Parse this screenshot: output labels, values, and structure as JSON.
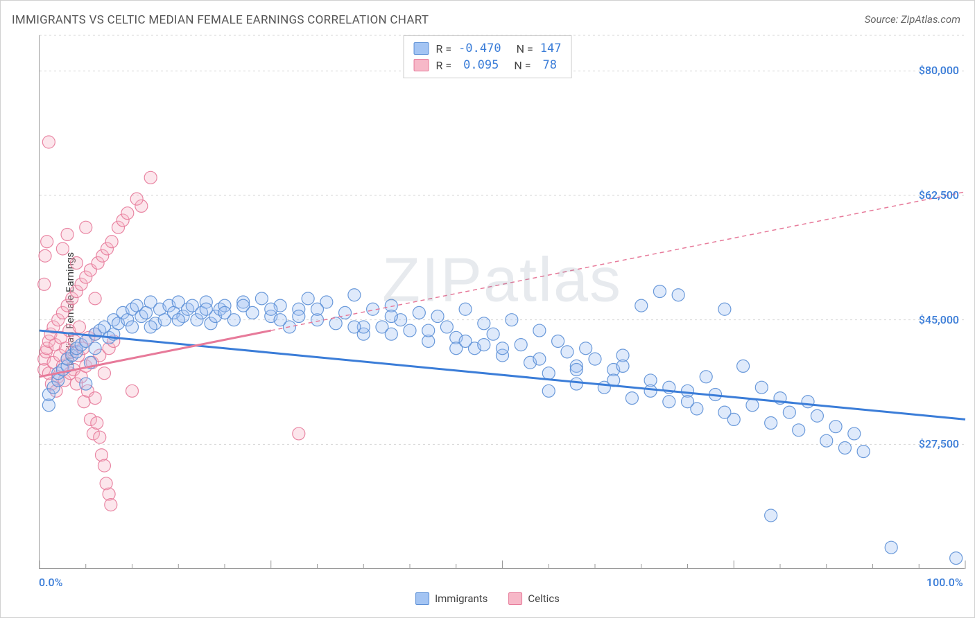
{
  "title": "IMMIGRANTS VS CELTIC MEDIAN FEMALE EARNINGS CORRELATION CHART",
  "source": "Source: ZipAtlas.com",
  "watermark": "ZIPatlas",
  "ylabel": "Median Female Earnings",
  "chart": {
    "type": "scatter",
    "background_color": "#ffffff",
    "grid_color": "#d5d5d5",
    "axis_color": "#999999",
    "xlim": [
      0,
      100
    ],
    "ylim": [
      10000,
      85000
    ],
    "ytick_values": [
      27500,
      45000,
      62500,
      80000
    ],
    "ytick_labels": [
      "$27,500",
      "$45,000",
      "$62,500",
      "$80,000"
    ],
    "xtick_minor_step": 5,
    "xtick_labels": {
      "0": "0.0%",
      "100": "100.0%"
    },
    "tick_label_color": "#3b7dd8",
    "tick_label_fontsize": 16,
    "marker_radius": 9,
    "marker_fill_opacity": 0.35,
    "marker_stroke_opacity": 0.9,
    "marker_stroke_width": 1.2,
    "trend_line_width_solid": 3,
    "trend_line_width_dashed": 1.5,
    "dash_pattern": "6,5"
  },
  "series": [
    {
      "name": "Immigrants",
      "color_fill": "#a3c4f3",
      "color_stroke": "#5b8fd6",
      "trend_color": "#3b7dd8",
      "trend_style": "solid",
      "trend_y_at_x0": 43500,
      "trend_y_at_x100": 31000,
      "R": "-0.470",
      "N": "147",
      "points": [
        [
          1,
          33000
        ],
        [
          1,
          34500
        ],
        [
          1.5,
          35500
        ],
        [
          2,
          36500
        ],
        [
          2,
          37500
        ],
        [
          2.5,
          38000
        ],
        [
          3,
          38500
        ],
        [
          3,
          39500
        ],
        [
          3.5,
          40000
        ],
        [
          4,
          40500
        ],
        [
          4,
          41000
        ],
        [
          4.5,
          41500
        ],
        [
          5,
          42000
        ],
        [
          5,
          36000
        ],
        [
          5.5,
          39000
        ],
        [
          6,
          43000
        ],
        [
          6,
          41000
        ],
        [
          6.5,
          43500
        ],
        [
          7,
          44000
        ],
        [
          7.5,
          42500
        ],
        [
          8,
          45000
        ],
        [
          8,
          43000
        ],
        [
          8.5,
          44500
        ],
        [
          9,
          46000
        ],
        [
          9.5,
          45000
        ],
        [
          10,
          46500
        ],
        [
          10,
          44000
        ],
        [
          10.5,
          47000
        ],
        [
          11,
          45500
        ],
        [
          11.5,
          46000
        ],
        [
          12,
          47500
        ],
        [
          12.5,
          44500
        ],
        [
          13,
          46500
        ],
        [
          13.5,
          45000
        ],
        [
          14,
          47000
        ],
        [
          14.5,
          46000
        ],
        [
          15,
          47500
        ],
        [
          15.5,
          45500
        ],
        [
          16,
          46500
        ],
        [
          16.5,
          47000
        ],
        [
          17,
          45000
        ],
        [
          17.5,
          46000
        ],
        [
          18,
          47500
        ],
        [
          18.5,
          44500
        ],
        [
          19,
          45500
        ],
        [
          19.5,
          46500
        ],
        [
          20,
          47000
        ],
        [
          21,
          45000
        ],
        [
          22,
          47500
        ],
        [
          23,
          46000
        ],
        [
          24,
          48000
        ],
        [
          25,
          45500
        ],
        [
          26,
          47000
        ],
        [
          27,
          44000
        ],
        [
          28,
          46500
        ],
        [
          29,
          48000
        ],
        [
          30,
          45000
        ],
        [
          31,
          47500
        ],
        [
          32,
          44500
        ],
        [
          33,
          46000
        ],
        [
          34,
          48500
        ],
        [
          35,
          43000
        ],
        [
          36,
          46500
        ],
        [
          37,
          44000
        ],
        [
          38,
          47000
        ],
        [
          39,
          45000
        ],
        [
          40,
          43500
        ],
        [
          41,
          46000
        ],
        [
          42,
          42000
        ],
        [
          43,
          45500
        ],
        [
          44,
          44000
        ],
        [
          45,
          42500
        ],
        [
          46,
          46500
        ],
        [
          47,
          41000
        ],
        [
          48,
          44500
        ],
        [
          49,
          43000
        ],
        [
          50,
          40000
        ],
        [
          51,
          45000
        ],
        [
          52,
          41500
        ],
        [
          53,
          39000
        ],
        [
          54,
          43500
        ],
        [
          55,
          37500
        ],
        [
          56,
          42000
        ],
        [
          57,
          40500
        ],
        [
          58,
          36000
        ],
        [
          59,
          41000
        ],
        [
          60,
          39500
        ],
        [
          61,
          35500
        ],
        [
          62,
          38000
        ],
        [
          63,
          40000
        ],
        [
          64,
          34000
        ],
        [
          65,
          47000
        ],
        [
          66,
          36500
        ],
        [
          67,
          49000
        ],
        [
          68,
          33500
        ],
        [
          69,
          48500
        ],
        [
          70,
          35000
        ],
        [
          71,
          32500
        ],
        [
          72,
          37000
        ],
        [
          73,
          34500
        ],
        [
          74,
          46500
        ],
        [
          75,
          31000
        ],
        [
          76,
          38500
        ],
        [
          77,
          33000
        ],
        [
          78,
          35500
        ],
        [
          79,
          30500
        ],
        [
          80,
          34000
        ],
        [
          81,
          32000
        ],
        [
          82,
          29500
        ],
        [
          83,
          33500
        ],
        [
          84,
          31500
        ],
        [
          85,
          28000
        ],
        [
          86,
          30000
        ],
        [
          87,
          27000
        ],
        [
          88,
          29000
        ],
        [
          89,
          26500
        ],
        [
          79,
          17500
        ],
        [
          92,
          13000
        ],
        [
          99,
          11500
        ],
        [
          63,
          38500
        ],
        [
          55,
          35000
        ],
        [
          45,
          41000
        ],
        [
          35,
          44000
        ],
        [
          25,
          46500
        ],
        [
          15,
          45000
        ],
        [
          12,
          44000
        ],
        [
          20,
          46000
        ],
        [
          28,
          45500
        ],
        [
          38,
          43000
        ],
        [
          48,
          41500
        ],
        [
          58,
          38500
        ],
        [
          68,
          35500
        ],
        [
          18,
          46500
        ],
        [
          22,
          47000
        ],
        [
          26,
          45000
        ],
        [
          30,
          46500
        ],
        [
          34,
          44000
        ],
        [
          38,
          45500
        ],
        [
          42,
          43500
        ],
        [
          46,
          42000
        ],
        [
          50,
          41000
        ],
        [
          54,
          39500
        ],
        [
          58,
          38000
        ],
        [
          62,
          36500
        ],
        [
          66,
          35000
        ],
        [
          70,
          33500
        ],
        [
          74,
          32000
        ]
      ]
    },
    {
      "name": "Celtics",
      "color_fill": "#f7b8c8",
      "color_stroke": "#e77a9a",
      "trend_color": "#e77a9a",
      "trend_style": "solid-then-dashed",
      "trend_solid_until_x": 25,
      "trend_y_at_x0": 37000,
      "trend_y_at_x100": 63000,
      "R": "0.095",
      "N": "78",
      "points": [
        [
          0.5,
          38000
        ],
        [
          0.5,
          39500
        ],
        [
          0.7,
          40500
        ],
        [
          0.8,
          41000
        ],
        [
          1,
          42000
        ],
        [
          1,
          37500
        ],
        [
          1.2,
          43000
        ],
        [
          1.3,
          36000
        ],
        [
          1.5,
          44000
        ],
        [
          1.5,
          39000
        ],
        [
          1.7,
          41500
        ],
        [
          1.8,
          35000
        ],
        [
          2,
          45000
        ],
        [
          2,
          37000
        ],
        [
          2.2,
          40000
        ],
        [
          2.3,
          42500
        ],
        [
          2.5,
          38500
        ],
        [
          2.5,
          46000
        ],
        [
          2.7,
          36500
        ],
        [
          2.8,
          41000
        ],
        [
          3,
          47000
        ],
        [
          3,
          39500
        ],
        [
          3.2,
          43500
        ],
        [
          3.3,
          37500
        ],
        [
          3.5,
          40500
        ],
        [
          3.5,
          48000
        ],
        [
          3.7,
          38000
        ],
        [
          3.8,
          42000
        ],
        [
          4,
          49000
        ],
        [
          4,
          36000
        ],
        [
          4.2,
          40000
        ],
        [
          4.3,
          44000
        ],
        [
          4.5,
          50000
        ],
        [
          4.5,
          37000
        ],
        [
          4.7,
          41000
        ],
        [
          4.8,
          33500
        ],
        [
          5,
          51000
        ],
        [
          5,
          38500
        ],
        [
          5.2,
          35000
        ],
        [
          5.3,
          42500
        ],
        [
          5.5,
          52000
        ],
        [
          5.5,
          31000
        ],
        [
          5.7,
          39000
        ],
        [
          5.8,
          29000
        ],
        [
          6,
          34000
        ],
        [
          6,
          43000
        ],
        [
          6.2,
          30500
        ],
        [
          6.3,
          53000
        ],
        [
          6.5,
          28500
        ],
        [
          6.5,
          40000
        ],
        [
          6.7,
          26000
        ],
        [
          6.8,
          54000
        ],
        [
          7,
          24500
        ],
        [
          7,
          37500
        ],
        [
          7.2,
          22000
        ],
        [
          7.3,
          55000
        ],
        [
          7.5,
          20500
        ],
        [
          7.5,
          41000
        ],
        [
          7.7,
          19000
        ],
        [
          7.8,
          56000
        ],
        [
          8,
          42000
        ],
        [
          8.5,
          58000
        ],
        [
          9,
          59000
        ],
        [
          9.5,
          60000
        ],
        [
          10,
          35000
        ],
        [
          11,
          61000
        ],
        [
          12,
          65000
        ],
        [
          1,
          70000
        ],
        [
          0.8,
          56000
        ],
        [
          0.6,
          54000
        ],
        [
          0.5,
          50000
        ],
        [
          2.5,
          55000
        ],
        [
          3,
          57000
        ],
        [
          4,
          53000
        ],
        [
          5,
          58000
        ],
        [
          6,
          48000
        ],
        [
          28,
          29000
        ],
        [
          10.5,
          62000
        ]
      ]
    }
  ],
  "legend": {
    "items": [
      {
        "label": "Immigrants",
        "fill": "#a3c4f3",
        "stroke": "#5b8fd6"
      },
      {
        "label": "Celtics",
        "fill": "#f7b8c8",
        "stroke": "#e77a9a"
      }
    ]
  }
}
